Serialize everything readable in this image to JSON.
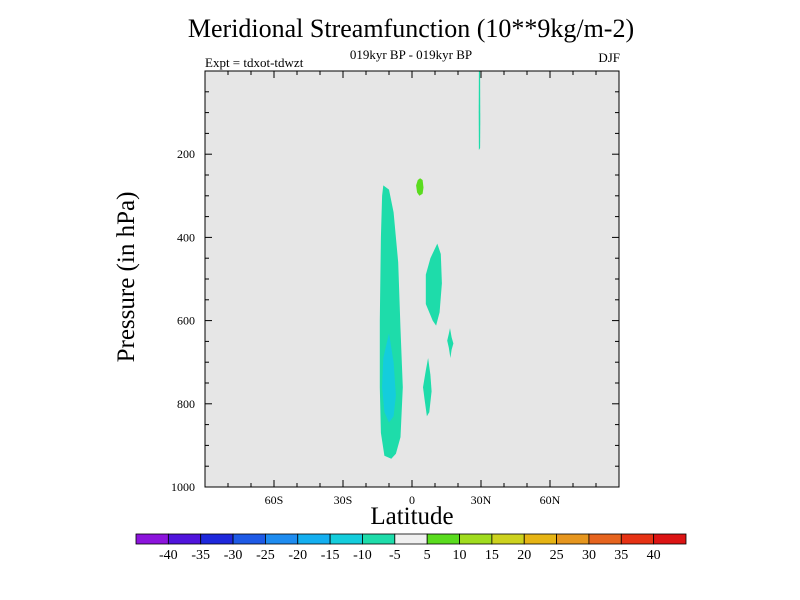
{
  "chart_data": {
    "type": "heatmap",
    "title": "Meridional Streamfunction (10**9kg/m-2)",
    "subtitle": "019kyr BP - 019kyr BP",
    "experiment": "Expt = tdxot-tdwzt",
    "season": "DJF",
    "xlabel": "Latitude",
    "ylabel": "Pressure (in hPa)",
    "xlim": [
      -90,
      90
    ],
    "ylim": [
      1000,
      0
    ],
    "x_ticks": [
      {
        "value": -60,
        "label": "60S"
      },
      {
        "value": -30,
        "label": "30S"
      },
      {
        "value": 0,
        "label": "0"
      },
      {
        "value": 30,
        "label": "30N"
      },
      {
        "value": 60,
        "label": "60N"
      }
    ],
    "y_ticks": [
      {
        "value": 200,
        "label": "200"
      },
      {
        "value": 400,
        "label": "400"
      },
      {
        "value": 600,
        "label": "600"
      },
      {
        "value": 800,
        "label": "800"
      },
      {
        "value": 1000,
        "label": "1000"
      }
    ],
    "background_color": "#e6e6e6",
    "colorbar": {
      "labels": [
        "-40",
        "-35",
        "-30",
        "-25",
        "-20",
        "-15",
        "-10",
        "-5",
        "5",
        "10",
        "15",
        "20",
        "25",
        "30",
        "35",
        "40"
      ],
      "colors": [
        "#8c14dc",
        "#5014dc",
        "#1e28dc",
        "#1e5ae6",
        "#1e8cf0",
        "#14aff0",
        "#14cddc",
        "#1edcaa",
        "#f0f0f0",
        "#5adc1e",
        "#a0dc1e",
        "#cdd21e",
        "#e6b414",
        "#e6961e",
        "#e6641e",
        "#e63214",
        "#dc1414"
      ]
    },
    "contours": [
      {
        "name": "main-negative-cell",
        "level": "-10 to -5",
        "color": "#1edcaa",
        "points": [
          [
            -12.5,
            275
          ],
          [
            -10,
            285
          ],
          [
            -8,
            340
          ],
          [
            -6,
            460
          ],
          [
            -5,
            620
          ],
          [
            -4,
            760
          ],
          [
            -5,
            880
          ],
          [
            -7,
            920
          ],
          [
            -9,
            932
          ],
          [
            -12,
            925
          ],
          [
            -13.5,
            870
          ],
          [
            -14,
            760
          ],
          [
            -14,
            600
          ],
          [
            -13.5,
            400
          ],
          [
            -13,
            300
          ]
        ]
      },
      {
        "name": "main-negative-core",
        "level": "-15 to -10",
        "color": "#14cddc",
        "points": [
          [
            -10,
            630
          ],
          [
            -8,
            700
          ],
          [
            -7,
            780
          ],
          [
            -8,
            830
          ],
          [
            -10,
            845
          ],
          [
            -12,
            820
          ],
          [
            -13,
            760
          ],
          [
            -12.5,
            690
          ]
        ]
      },
      {
        "name": "negative-cell-10n",
        "level": "-10 to -5",
        "color": "#1edcaa",
        "points": [
          [
            11,
            415
          ],
          [
            12.5,
            440
          ],
          [
            13,
            510
          ],
          [
            12,
            580
          ],
          [
            10.5,
            612
          ],
          [
            9,
            600
          ],
          [
            6,
            560
          ],
          [
            6,
            490
          ],
          [
            8,
            450
          ]
        ]
      },
      {
        "name": "negative-cell-15n",
        "level": "-10 to -5",
        "color": "#1edcaa",
        "points": [
          [
            16.5,
            618
          ],
          [
            17.2,
            640
          ],
          [
            18,
            655
          ],
          [
            17.2,
            670
          ],
          [
            16.7,
            690
          ],
          [
            16,
            665
          ],
          [
            15.3,
            648
          ],
          [
            16,
            632
          ]
        ]
      },
      {
        "name": "negative-cell-7n",
        "level": "-10 to -5",
        "color": "#1edcaa",
        "points": [
          [
            7,
            690
          ],
          [
            8,
            730
          ],
          [
            8.5,
            770
          ],
          [
            7.5,
            820
          ],
          [
            6.5,
            830
          ],
          [
            5.5,
            790
          ],
          [
            4.8,
            760
          ],
          [
            6,
            720
          ]
        ]
      },
      {
        "name": "negative-sliver-30n",
        "level": "-10 to -5",
        "color": "#1edcaa",
        "points": [
          [
            29.1,
            0
          ],
          [
            29.6,
            0
          ],
          [
            29.7,
            120
          ],
          [
            29.6,
            185
          ],
          [
            29.1,
            190
          ],
          [
            29,
            100
          ]
        ]
      },
      {
        "name": "positive-cell-3n",
        "level": "5 to 10",
        "color": "#5adc1e",
        "points": [
          [
            3.5,
            258
          ],
          [
            4.6,
            262
          ],
          [
            5,
            280
          ],
          [
            4.6,
            295
          ],
          [
            3.2,
            300
          ],
          [
            2.2,
            292
          ],
          [
            1.8,
            275
          ],
          [
            2.5,
            262
          ]
        ]
      }
    ]
  }
}
